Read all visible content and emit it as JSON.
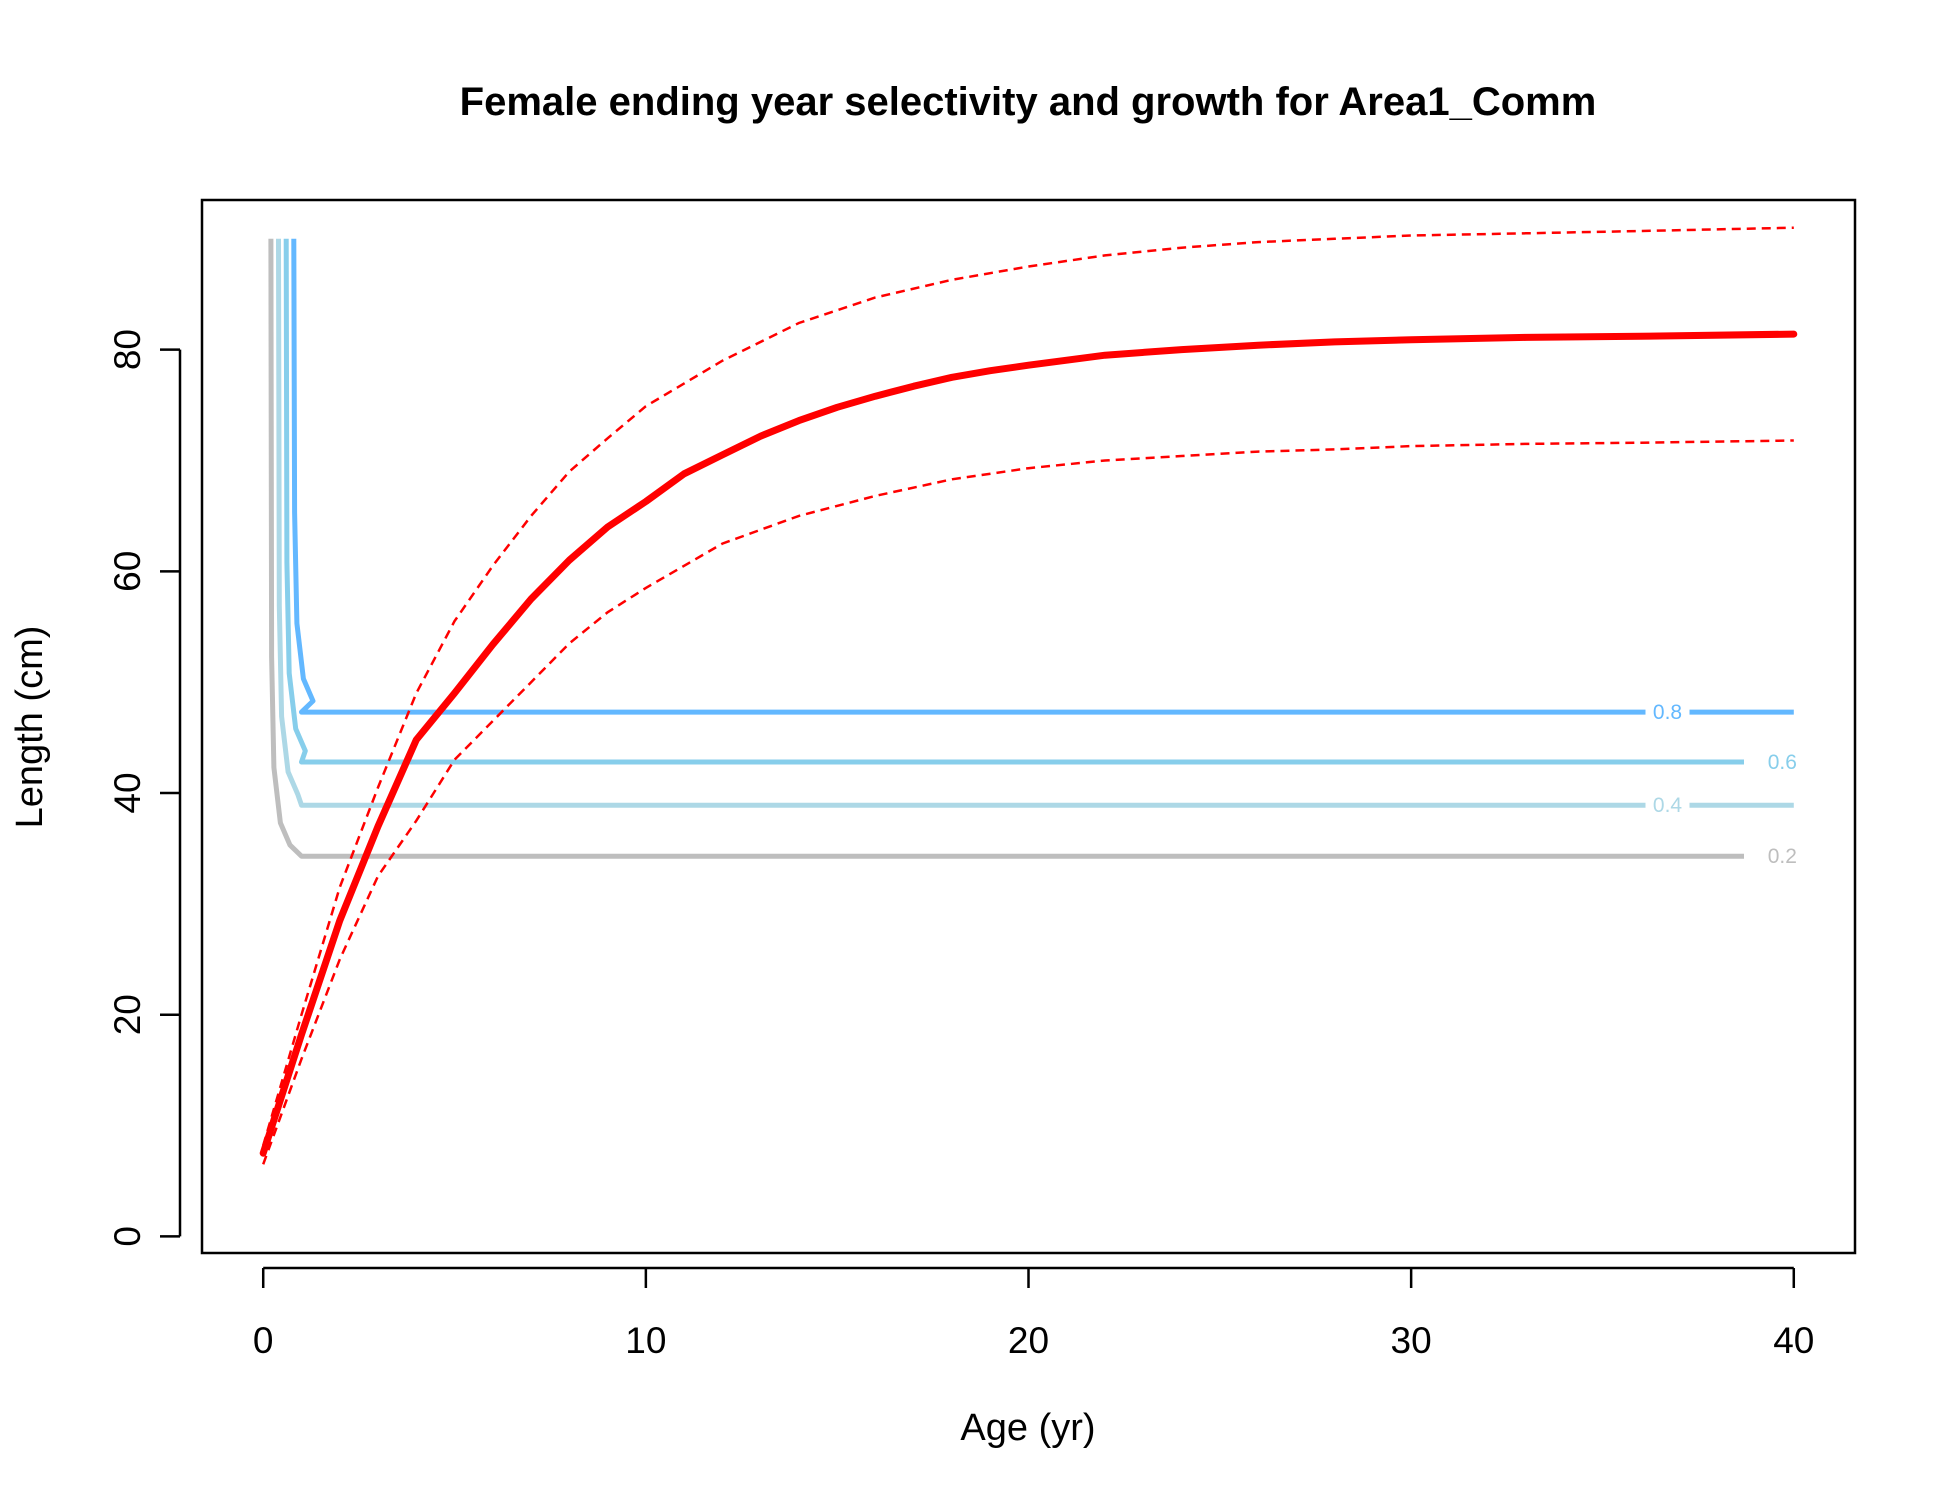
{
  "chart_data": {
    "type": "line",
    "title": "Female ending year selectivity and growth for Area1_Comm",
    "xlabel": "Age (yr)",
    "ylabel": "Length (cm)",
    "xlim": [
      -1.6,
      41.6
    ],
    "ylim": [
      -1.5,
      93.5
    ],
    "x_ticks": [
      "0",
      "10",
      "20",
      "30",
      "40"
    ],
    "y_ticks": [
      "0",
      "20",
      "40",
      "60",
      "80"
    ],
    "grid": false,
    "growth": {
      "color": "#FF0000",
      "mean_length": [
        [
          0,
          7.5
        ],
        [
          1,
          18.2
        ],
        [
          2,
          28.5
        ],
        [
          3,
          37.0
        ],
        [
          4,
          44.8
        ],
        [
          5,
          49.0
        ],
        [
          6,
          53.4
        ],
        [
          7,
          57.5
        ],
        [
          8,
          61.0
        ],
        [
          9,
          64.0
        ],
        [
          10,
          66.3
        ],
        [
          11,
          68.8
        ],
        [
          12,
          70.5
        ],
        [
          13,
          72.2
        ],
        [
          14,
          73.6
        ],
        [
          15,
          74.8
        ],
        [
          16,
          75.8
        ],
        [
          17,
          76.7
        ],
        [
          18,
          77.5
        ],
        [
          19,
          78.1
        ],
        [
          20,
          78.6
        ],
        [
          22,
          79.5
        ],
        [
          24,
          80.0
        ],
        [
          26,
          80.4
        ],
        [
          28,
          80.7
        ],
        [
          30,
          80.9
        ],
        [
          33,
          81.1
        ],
        [
          36,
          81.2
        ],
        [
          40,
          81.4
        ]
      ],
      "upper_interval": [
        [
          0,
          8.2
        ],
        [
          1,
          20.0
        ],
        [
          2,
          31.5
        ],
        [
          3,
          40.5
        ],
        [
          4,
          49.0
        ],
        [
          5,
          55.5
        ],
        [
          6,
          60.5
        ],
        [
          7,
          65.0
        ],
        [
          8,
          69.0
        ],
        [
          9,
          72.0
        ],
        [
          10,
          74.9
        ],
        [
          12,
          79.0
        ],
        [
          14,
          82.4
        ],
        [
          16,
          84.7
        ],
        [
          18,
          86.3
        ],
        [
          20,
          87.5
        ],
        [
          22,
          88.5
        ],
        [
          24,
          89.2
        ],
        [
          26,
          89.7
        ],
        [
          28,
          90.0
        ],
        [
          30,
          90.3
        ],
        [
          33,
          90.5
        ],
        [
          36,
          90.7
        ],
        [
          40,
          91.0
        ]
      ],
      "lower_interval": [
        [
          0,
          6.5
        ],
        [
          1,
          16.0
        ],
        [
          2,
          25.0
        ],
        [
          3,
          32.5
        ],
        [
          4,
          37.5
        ],
        [
          5,
          43.0
        ],
        [
          6,
          46.5
        ],
        [
          7,
          50.0
        ],
        [
          8,
          53.5
        ],
        [
          9,
          56.3
        ],
        [
          10,
          58.5
        ],
        [
          12,
          62.5
        ],
        [
          14,
          65.0
        ],
        [
          16,
          66.8
        ],
        [
          18,
          68.3
        ],
        [
          20,
          69.3
        ],
        [
          22,
          70.0
        ],
        [
          24,
          70.4
        ],
        [
          26,
          70.8
        ],
        [
          28,
          71.0
        ],
        [
          30,
          71.3
        ],
        [
          33,
          71.5
        ],
        [
          36,
          71.6
        ],
        [
          40,
          71.8
        ]
      ]
    },
    "selectivity_contours": [
      {
        "label": "0.2",
        "level": 0.2,
        "length": 34.3,
        "x_vertical": 0.2,
        "x_end": 38.7,
        "color": "#BEBEBE"
      },
      {
        "label": "0.4",
        "level": 0.4,
        "length": 38.9,
        "x_vertical": 0.4,
        "x_end": 40.0,
        "color": "#ADD8E6"
      },
      {
        "label": "0.6",
        "level": 0.6,
        "length": 42.8,
        "x_vertical": 0.6,
        "x_end": 38.7,
        "color": "#87CEEB"
      },
      {
        "label": "0.8",
        "level": 0.8,
        "length": 47.3,
        "x_vertical": 0.8,
        "x_end": 40.0,
        "color": "#63B8FF"
      }
    ],
    "selectivity_top_length": 90,
    "selectivity_step_age": 1.0
  }
}
